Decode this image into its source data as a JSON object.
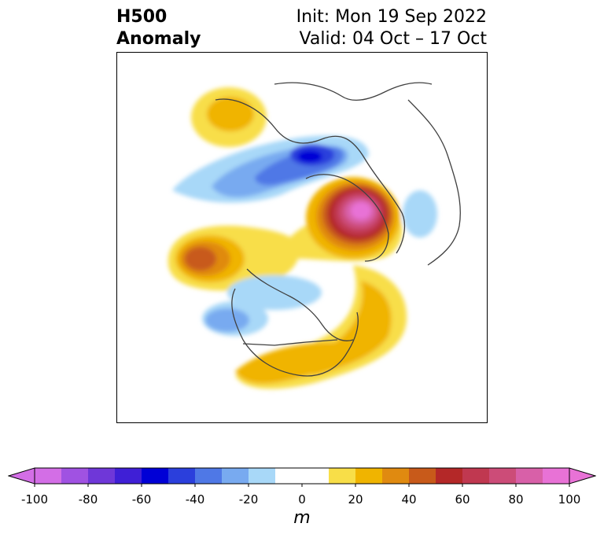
{
  "title": {
    "left_line1": "H500",
    "left_line2": "Anomaly",
    "right_line1": "Init: Mon 19 Sep 2022",
    "right_line2": "Valid: 04 Oct – 17 Oct"
  },
  "colorbar": {
    "units": "m",
    "min": -100,
    "max": 100,
    "step": 10,
    "ticks": [
      "-100",
      "-80",
      "-60",
      "-40",
      "-20",
      "0",
      "20",
      "40",
      "60",
      "80",
      "100"
    ],
    "tick_values": [
      -100,
      -80,
      -60,
      -40,
      -20,
      0,
      20,
      40,
      60,
      80,
      100
    ],
    "colors": [
      "#d36ee6",
      "#a052e2",
      "#6f37d8",
      "#3f1fd6",
      "#0000d6",
      "#2b3fdc",
      "#4f78e6",
      "#78aaf0",
      "#a8d8f8",
      "#ffffff",
      "#ffffff",
      "#f8de48",
      "#f0b400",
      "#e08a10",
      "#c85a1a",
      "#b42828",
      "#c03850",
      "#cc4c78",
      "#d860a8",
      "#e872d6"
    ],
    "extend": "both"
  },
  "map": {
    "projection": "north polar stereographic",
    "field": "500 hPa geopotential height anomaly"
  }
}
